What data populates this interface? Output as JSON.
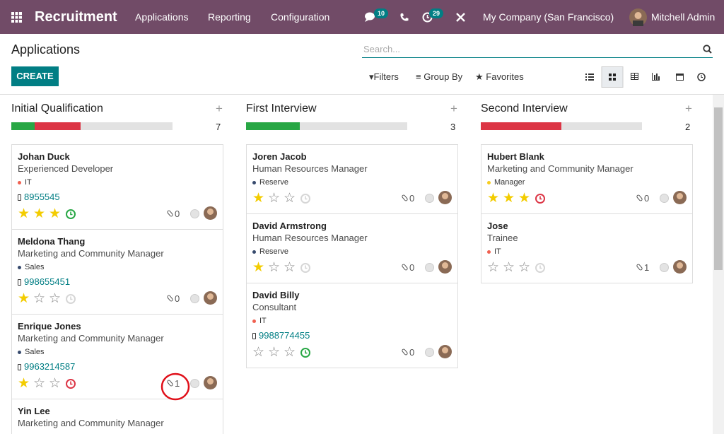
{
  "navbar": {
    "app": "Recruitment",
    "menus": [
      "Applications",
      "Reporting",
      "Configuration"
    ],
    "messages_count": "10",
    "activities_count": "29",
    "company": "My Company (San Francisco)",
    "user": "Mitchell Admin"
  },
  "control_panel": {
    "title": "Applications",
    "search_placeholder": "Search...",
    "create": "CREATE",
    "filters": "Filters",
    "group_by": "Group By",
    "favorites": "Favorites"
  },
  "columns": [
    {
      "name": "Initial Qualification",
      "count": "7",
      "progress": [
        {
          "color": "#28a745",
          "value": 1
        },
        {
          "color": "#dc3545",
          "value": 2
        }
      ],
      "cards": [
        {
          "name": "Johan Duck",
          "job": "Experienced Developer",
          "tag": "IT",
          "tag_color": "#f06050",
          "phone": "8955545",
          "priority": 3,
          "activity_color": "#28a745",
          "attachments": "0"
        },
        {
          "name": "Meldona Thang",
          "job": "Marketing and Community Manager",
          "tag": "Sales",
          "tag_color": "#374a6d",
          "phone": "998655451",
          "priority": 1,
          "activity_color": "#d6d6d6",
          "attachments": "0"
        },
        {
          "name": "Enrique Jones",
          "job": "Marketing and Community Manager",
          "tag": "Sales",
          "tag_color": "#374a6d",
          "phone": "9963214587",
          "priority": 1,
          "activity_color": "#dc3545",
          "attachments": "1"
        },
        {
          "name": "Yin Lee",
          "job": "Marketing and Community Manager"
        }
      ]
    },
    {
      "name": "First Interview",
      "count": "3",
      "progress": [
        {
          "color": "#28a745",
          "value": 1
        }
      ],
      "cards": [
        {
          "name": "Joren Jacob",
          "job": "Human Resources Manager",
          "tag": "Reserve",
          "tag_color": "#374a6d",
          "priority": 1,
          "activity_color": "#d6d6d6",
          "attachments": "0"
        },
        {
          "name": "David Armstrong",
          "job": "Human Resources Manager",
          "tag": "Reserve",
          "tag_color": "#374a6d",
          "priority": 1,
          "activity_color": "#d6d6d6",
          "attachments": "0"
        },
        {
          "name": "David Billy",
          "job": "Consultant",
          "tag": "IT",
          "tag_color": "#f06050",
          "phone": "9988774455",
          "priority": 0,
          "activity_color": "#28a745",
          "attachments": "0"
        }
      ]
    },
    {
      "name": "Second Interview",
      "count": "2",
      "progress": [
        {
          "color": "#dc3545",
          "value": 1
        }
      ],
      "cards": [
        {
          "name": "Hubert Blank",
          "job": "Marketing and Community Manager",
          "tag": "Manager",
          "tag_color": "#f7cd1f",
          "priority": 3,
          "activity_color": "#dc3545",
          "attachments": "0"
        },
        {
          "name": "Jose",
          "job": "Trainee",
          "tag": "IT",
          "tag_color": "#f06050",
          "priority": 0,
          "activity_color": "#d6d6d6",
          "attachments": "1"
        }
      ]
    }
  ]
}
